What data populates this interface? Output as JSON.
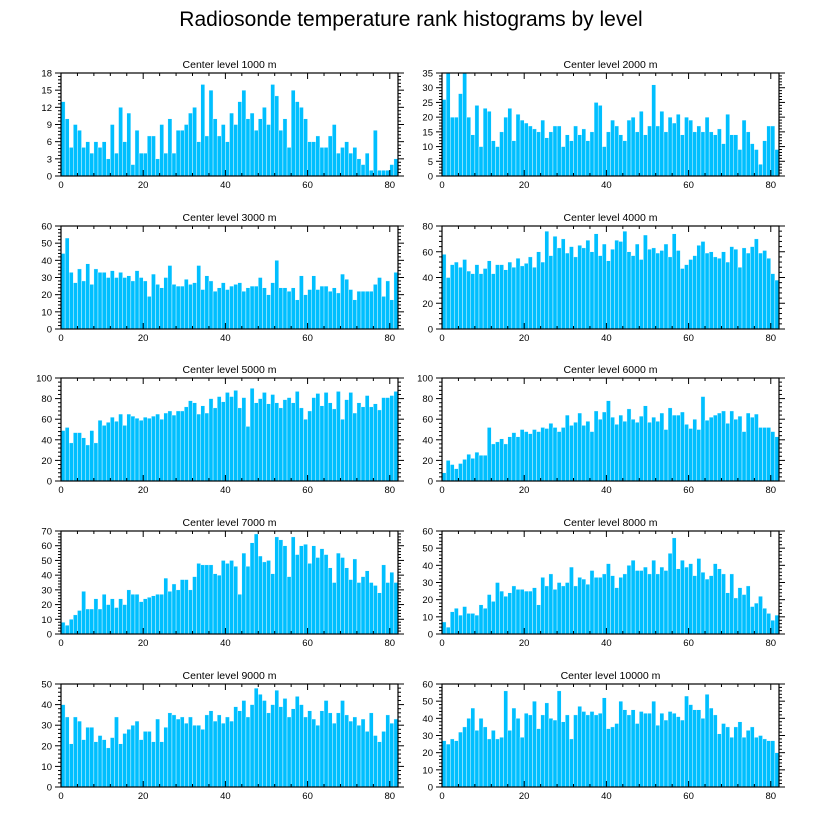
{
  "title": "Radiosonde temperature rank histograms by level",
  "bar_color": "#00bfff",
  "chart_data": [
    {
      "type": "bar",
      "title": "Center level 1000 m",
      "xlabel": "",
      "ylabel": "",
      "xlim": [
        0,
        82
      ],
      "xticks": [
        0,
        20,
        40,
        60,
        80
      ],
      "ylim": [
        0,
        18
      ],
      "yticks": [
        0,
        3,
        6,
        9,
        12,
        15,
        18
      ],
      "values": [
        13,
        10,
        5,
        9,
        8,
        5,
        6,
        4,
        6,
        5,
        6,
        3,
        9,
        4,
        12,
        6,
        11,
        2,
        8,
        4,
        4,
        7,
        7,
        3,
        9,
        4,
        10,
        4,
        8,
        8,
        9,
        11,
        12,
        6,
        16,
        7,
        15,
        10,
        7,
        9,
        6,
        11,
        9,
        13,
        15,
        10,
        11,
        8,
        10,
        12,
        9,
        16,
        14,
        8,
        10,
        5,
        15,
        13,
        12,
        10,
        6,
        6,
        7,
        5,
        5,
        7,
        9,
        4,
        5,
        6,
        4,
        5,
        3,
        2,
        4,
        1,
        8,
        1,
        1,
        1,
        2,
        3
      ]
    },
    {
      "type": "bar",
      "title": "Center level 2000 m",
      "xlabel": "",
      "ylabel": "",
      "xlim": [
        0,
        82
      ],
      "xticks": [
        0,
        20,
        40,
        60,
        80
      ],
      "ylim": [
        0,
        35
      ],
      "yticks": [
        0,
        5,
        10,
        15,
        20,
        25,
        30,
        35
      ],
      "values": [
        26,
        35,
        20,
        20,
        28,
        35,
        20,
        14,
        24,
        10,
        23,
        22,
        12,
        10,
        15,
        20,
        23,
        12,
        21,
        19,
        18,
        17,
        16,
        15,
        19,
        13,
        15,
        17,
        17,
        10,
        14,
        12,
        17,
        14,
        16,
        12,
        15,
        25,
        24,
        10,
        15,
        19,
        17,
        14,
        12,
        19,
        20,
        15,
        22,
        14,
        17,
        31,
        17,
        22,
        15,
        20,
        18,
        21,
        14,
        20,
        19,
        15,
        17,
        15,
        20,
        15,
        14,
        16,
        11,
        21,
        14,
        14,
        9,
        19,
        15,
        11,
        9,
        4,
        12,
        17,
        17,
        9
      ]
    },
    {
      "type": "bar",
      "title": "Center level 3000 m",
      "xlabel": "",
      "ylabel": "",
      "xlim": [
        0,
        82
      ],
      "xticks": [
        0,
        20,
        40,
        60,
        80
      ],
      "ylim": [
        0,
        60
      ],
      "yticks": [
        0,
        10,
        20,
        30,
        40,
        50,
        60
      ],
      "values": [
        44,
        53,
        33,
        27,
        35,
        28,
        38,
        26,
        35,
        33,
        33,
        30,
        34,
        30,
        33,
        30,
        31,
        28,
        34,
        30,
        28,
        19,
        32,
        26,
        24,
        30,
        37,
        26,
        25,
        25,
        29,
        26,
        27,
        37,
        23,
        31,
        28,
        22,
        24,
        27,
        23,
        25,
        26,
        27,
        22,
        24,
        25,
        25,
        30,
        24,
        20,
        27,
        40,
        24,
        24,
        22,
        24,
        17,
        31,
        20,
        23,
        31,
        23,
        25,
        25,
        22,
        24,
        21,
        32,
        29,
        23,
        17,
        22,
        22,
        22,
        22,
        26,
        30,
        19,
        28,
        17,
        33
      ]
    },
    {
      "type": "bar",
      "title": "Center level 4000 m",
      "xlabel": "",
      "ylabel": "",
      "xlim": [
        0,
        82
      ],
      "xticks": [
        0,
        20,
        40,
        60,
        80
      ],
      "ylim": [
        0,
        80
      ],
      "yticks": [
        0,
        20,
        40,
        60,
        80
      ],
      "values": [
        58,
        40,
        50,
        52,
        48,
        54,
        45,
        43,
        50,
        43,
        47,
        53,
        43,
        50,
        50,
        46,
        52,
        48,
        55,
        49,
        51,
        56,
        48,
        60,
        52,
        76,
        57,
        72,
        63,
        70,
        59,
        64,
        56,
        65,
        63,
        69,
        60,
        74,
        57,
        66,
        53,
        62,
        69,
        68,
        76,
        60,
        57,
        66,
        54,
        73,
        62,
        63,
        59,
        61,
        66,
        56,
        74,
        61,
        47,
        50,
        54,
        57,
        65,
        68,
        59,
        60,
        56,
        55,
        60,
        52,
        64,
        62,
        48,
        63,
        59,
        64,
        70,
        59,
        61,
        55,
        43,
        38
      ]
    },
    {
      "type": "bar",
      "title": "Center level 5000 m",
      "xlabel": "",
      "ylabel": "",
      "xlim": [
        0,
        82
      ],
      "xticks": [
        0,
        20,
        40,
        60,
        80
      ],
      "ylim": [
        0,
        100
      ],
      "yticks": [
        0,
        20,
        40,
        60,
        80,
        100
      ],
      "values": [
        49,
        52,
        37,
        47,
        47,
        42,
        35,
        49,
        37,
        59,
        54,
        57,
        62,
        58,
        65,
        54,
        65,
        63,
        61,
        59,
        62,
        61,
        63,
        65,
        60,
        66,
        68,
        64,
        68,
        68,
        72,
        78,
        76,
        65,
        73,
        66,
        80,
        71,
        82,
        77,
        86,
        82,
        88,
        71,
        81,
        53,
        90,
        76,
        80,
        86,
        75,
        84,
        76,
        71,
        79,
        81,
        76,
        87,
        71,
        60,
        68,
        81,
        85,
        73,
        86,
        76,
        70,
        87,
        60,
        79,
        86,
        66,
        76,
        72,
        83,
        72,
        75,
        69,
        81,
        81,
        83,
        87
      ]
    },
    {
      "type": "bar",
      "title": "Center level 6000 m",
      "xlabel": "",
      "ylabel": "",
      "xlim": [
        0,
        82
      ],
      "xticks": [
        0,
        20,
        40,
        60,
        80
      ],
      "ylim": [
        0,
        100
      ],
      "yticks": [
        0,
        20,
        40,
        60,
        80,
        100
      ],
      "values": [
        8,
        20,
        16,
        12,
        17,
        21,
        26,
        22,
        28,
        25,
        25,
        52,
        36,
        38,
        41,
        36,
        43,
        47,
        43,
        50,
        48,
        46,
        50,
        48,
        52,
        51,
        56,
        52,
        48,
        52,
        64,
        54,
        57,
        66,
        54,
        58,
        48,
        68,
        60,
        67,
        78,
        62,
        55,
        64,
        58,
        70,
        60,
        57,
        63,
        73,
        57,
        62,
        58,
        66,
        50,
        71,
        64,
        64,
        67,
        55,
        51,
        60,
        50,
        82,
        59,
        62,
        64,
        66,
        68,
        56,
        68,
        60,
        63,
        48,
        66,
        62,
        65,
        52,
        52,
        52,
        48,
        43
      ]
    },
    {
      "type": "bar",
      "title": "Center level 7000 m",
      "xlabel": "",
      "ylabel": "",
      "xlim": [
        0,
        82
      ],
      "xticks": [
        0,
        20,
        40,
        60,
        80
      ],
      "ylim": [
        0,
        70
      ],
      "yticks": [
        0,
        10,
        20,
        30,
        40,
        50,
        60,
        70
      ],
      "values": [
        8,
        6,
        10,
        13,
        16,
        29,
        17,
        17,
        24,
        17,
        27,
        20,
        24,
        18,
        24,
        20,
        30,
        27,
        27,
        22,
        24,
        25,
        26,
        27,
        27,
        38,
        29,
        34,
        30,
        37,
        37,
        30,
        39,
        48,
        47,
        47,
        47,
        41,
        40,
        50,
        48,
        50,
        46,
        27,
        55,
        46,
        62,
        68,
        53,
        49,
        50,
        41,
        66,
        64,
        60,
        39,
        66,
        54,
        60,
        61,
        48,
        60,
        52,
        58,
        54,
        45,
        35,
        55,
        52,
        45,
        37,
        51,
        35,
        39,
        43,
        35,
        33,
        28,
        47,
        35,
        42,
        35
      ]
    },
    {
      "type": "bar",
      "title": "Center level 8000 m",
      "xlabel": "",
      "ylabel": "",
      "xlim": [
        0,
        82
      ],
      "xticks": [
        0,
        20,
        40,
        60,
        80
      ],
      "ylim": [
        0,
        60
      ],
      "yticks": [
        0,
        10,
        20,
        30,
        40,
        50,
        60
      ],
      "values": [
        7,
        4,
        13,
        15,
        11,
        16,
        12,
        12,
        11,
        17,
        15,
        23,
        19,
        30,
        25,
        22,
        24,
        28,
        26,
        26,
        25,
        25,
        27,
        17,
        33,
        28,
        35,
        26,
        30,
        28,
        30,
        39,
        28,
        33,
        32,
        29,
        37,
        33,
        33,
        35,
        41,
        34,
        27,
        33,
        35,
        40,
        43,
        37,
        37,
        39,
        35,
        43,
        35,
        39,
        37,
        47,
        56,
        38,
        43,
        39,
        41,
        34,
        44,
        36,
        32,
        34,
        41,
        38,
        35,
        24,
        35,
        21,
        27,
        23,
        28,
        16,
        18,
        22,
        15,
        12,
        8,
        11
      ]
    },
    {
      "type": "bar",
      "title": "Center level 9000 m",
      "xlabel": "",
      "ylabel": "",
      "xlim": [
        0,
        82
      ],
      "xticks": [
        0,
        20,
        40,
        60,
        80
      ],
      "ylim": [
        0,
        50
      ],
      "yticks": [
        0,
        10,
        20,
        30,
        40,
        50
      ],
      "values": [
        40,
        34,
        21,
        34,
        32,
        23,
        29,
        29,
        22,
        25,
        23,
        19,
        24,
        34,
        21,
        26,
        28,
        30,
        32,
        23,
        27,
        27,
        22,
        33,
        22,
        29,
        36,
        35,
        33,
        34,
        31,
        34,
        30,
        30,
        28,
        35,
        37,
        32,
        35,
        31,
        34,
        32,
        39,
        37,
        42,
        34,
        40,
        48,
        45,
        42,
        36,
        40,
        47,
        39,
        43,
        34,
        38,
        44,
        40,
        34,
        37,
        33,
        30,
        37,
        42,
        36,
        31,
        36,
        42,
        35,
        32,
        34,
        30,
        33,
        27,
        36,
        25,
        22,
        27,
        35,
        31,
        33
      ]
    },
    {
      "type": "bar",
      "title": "Center level 10000 m",
      "xlabel": "",
      "ylabel": "",
      "xlim": [
        0,
        82
      ],
      "xticks": [
        0,
        20,
        40,
        60,
        80
      ],
      "ylim": [
        0,
        60
      ],
      "yticks": [
        0,
        10,
        20,
        30,
        40,
        50,
        60
      ],
      "values": [
        27,
        25,
        28,
        27,
        32,
        35,
        40,
        46,
        33,
        40,
        35,
        28,
        33,
        28,
        29,
        56,
        33,
        46,
        40,
        29,
        43,
        42,
        50,
        34,
        42,
        49,
        40,
        39,
        56,
        38,
        42,
        28,
        42,
        47,
        44,
        42,
        44,
        42,
        43,
        52,
        34,
        35,
        37,
        50,
        45,
        42,
        45,
        37,
        44,
        43,
        43,
        50,
        36,
        43,
        39,
        44,
        43,
        41,
        39,
        53,
        48,
        45,
        45,
        40,
        54,
        46,
        42,
        31,
        37,
        35,
        29,
        35,
        38,
        29,
        33,
        35,
        29,
        30,
        28,
        27,
        27,
        20
      ]
    }
  ]
}
